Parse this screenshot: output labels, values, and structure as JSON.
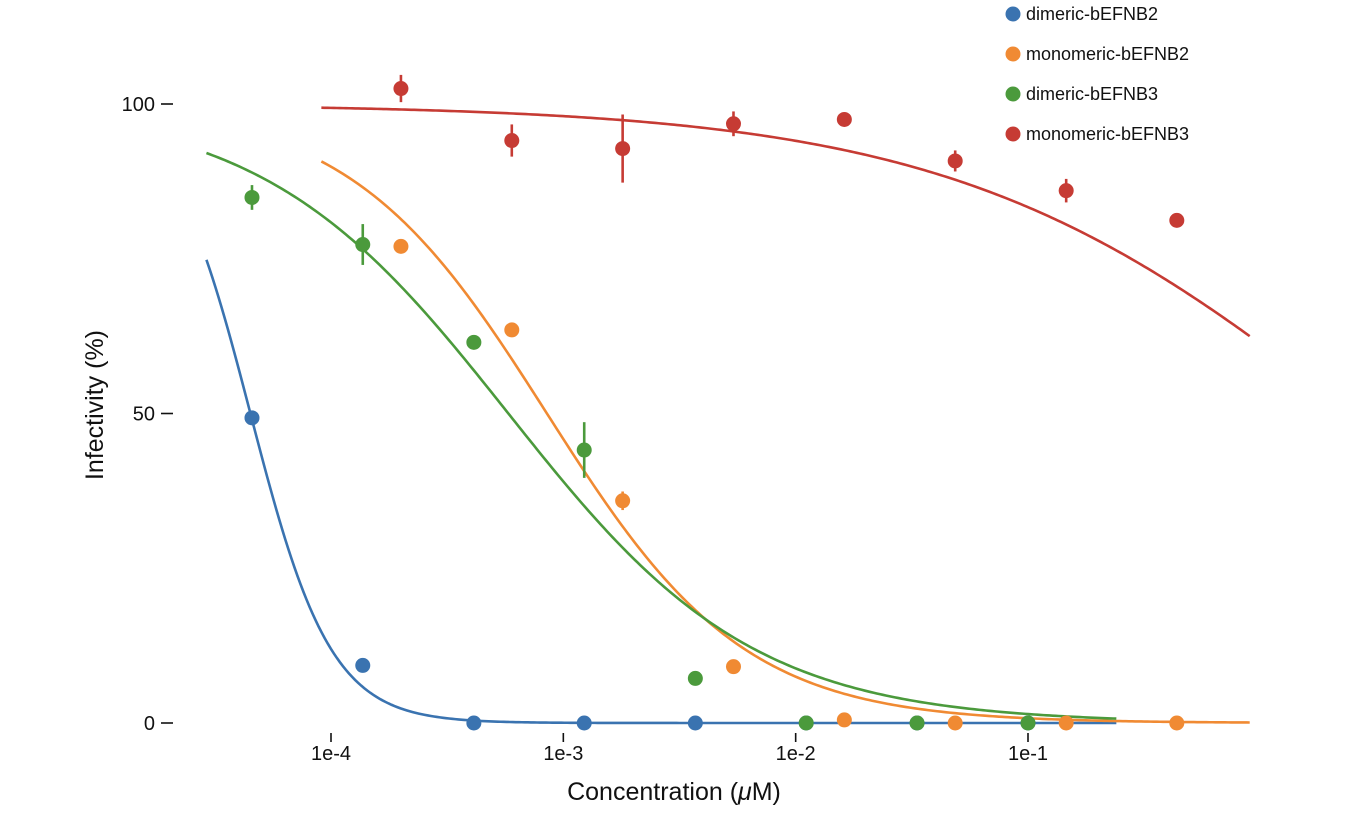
{
  "chart_data": {
    "type": "scatter",
    "title": "",
    "xlabel_prefix": "Concentration (",
    "xlabel_mu": "μ",
    "xlabel_suffix": "M)",
    "ylabel": "Infectivity (%)",
    "x_scale": "log",
    "xlim": [
      1e-05,
      0.9
    ],
    "ylim": [
      0,
      105
    ],
    "x_ticks": [
      0.0001,
      0.001,
      0.01,
      0.1
    ],
    "x_tick_labels": [
      "1e-4",
      "1e-3",
      "1e-2",
      "1e-1"
    ],
    "y_ticks": [
      0,
      50,
      100
    ],
    "y_tick_labels": [
      "0",
      "50",
      "100"
    ],
    "grid": false,
    "legend_position": "top-right",
    "series": [
      {
        "name": "dimeric-bEFNB2",
        "color": "#3a73b0",
        "points": [
          {
            "x": 4.57e-05,
            "y": 49.3,
            "err": 0
          },
          {
            "x": 0.000137,
            "y": 9.3,
            "err": 0
          },
          {
            "x": 0.000412,
            "y": 0.0,
            "err": 0
          },
          {
            "x": 0.00123,
            "y": 0.0,
            "err": 0
          },
          {
            "x": 0.0037,
            "y": 0.0,
            "err": 0
          },
          {
            "x": 0.0111,
            "y": 0.0,
            "err": 0
          },
          {
            "x": 0.0333,
            "y": 0.0,
            "err": 0
          },
          {
            "x": 0.1,
            "y": 0.0,
            "err": 0
          }
        ],
        "fit": {
          "top": 100,
          "bottom": 0,
          "ic50": 4.5e-05,
          "hill": 2.5,
          "x_from": 2.91e-05,
          "x_to": 0.24
        }
      },
      {
        "name": "monomeric-bEFNB2",
        "color": "#f08a33",
        "points": [
          {
            "x": 0.0002,
            "y": 77.0,
            "err": 0
          },
          {
            "x": 0.0006,
            "y": 63.5,
            "err": 0
          },
          {
            "x": 0.0018,
            "y": 35.9,
            "err": 1.5
          },
          {
            "x": 0.0054,
            "y": 9.1,
            "err": 0
          },
          {
            "x": 0.0162,
            "y": 0.5,
            "err": 0
          },
          {
            "x": 0.0486,
            "y": 0.0,
            "err": 0
          },
          {
            "x": 0.146,
            "y": 0.0,
            "err": 0
          },
          {
            "x": 0.437,
            "y": 0.0,
            "err": 0
          }
        ],
        "fit": {
          "top": 100,
          "bottom": 0,
          "ic50": 0.00085,
          "hill": 1.02,
          "x_from": 9.09e-05,
          "x_to": 0.9
        }
      },
      {
        "name": "dimeric-bEFNB3",
        "color": "#4b9a3c",
        "points": [
          {
            "x": 4.57e-05,
            "y": 84.9,
            "err": 2.0
          },
          {
            "x": 0.000137,
            "y": 77.3,
            "err": 3.3
          },
          {
            "x": 0.000412,
            "y": 61.5,
            "err": 0
          },
          {
            "x": 0.00123,
            "y": 44.1,
            "err": 4.5
          },
          {
            "x": 0.0037,
            "y": 7.2,
            "err": 1.0
          },
          {
            "x": 0.0111,
            "y": 0.0,
            "err": 0
          },
          {
            "x": 0.0333,
            "y": 0.0,
            "err": 0
          },
          {
            "x": 0.1,
            "y": 0.0,
            "err": 0
          }
        ],
        "fit": {
          "top": 100,
          "bottom": 0,
          "ic50": 0.00058,
          "hill": 0.82,
          "x_from": 2.91e-05,
          "x_to": 0.24
        }
      },
      {
        "name": "monomeric-bEFNB3",
        "color": "#c63b34",
        "points": [
          {
            "x": 0.0002,
            "y": 102.5,
            "err": 2.2
          },
          {
            "x": 0.0006,
            "y": 94.1,
            "err": 2.6
          },
          {
            "x": 0.0018,
            "y": 92.8,
            "err": 5.5
          },
          {
            "x": 0.0054,
            "y": 96.8,
            "err": 2.0
          },
          {
            "x": 0.0162,
            "y": 97.5,
            "err": 0
          },
          {
            "x": 0.0486,
            "y": 90.8,
            "err": 1.7
          },
          {
            "x": 0.146,
            "y": 86.0,
            "err": 1.9
          },
          {
            "x": 0.437,
            "y": 81.2,
            "err": 0
          }
        ],
        "fit": {
          "top": 100,
          "bottom": 0,
          "ic50": 2.5,
          "hill": 0.5,
          "x_from": 9.09e-05,
          "x_to": 0.9
        }
      }
    ]
  }
}
